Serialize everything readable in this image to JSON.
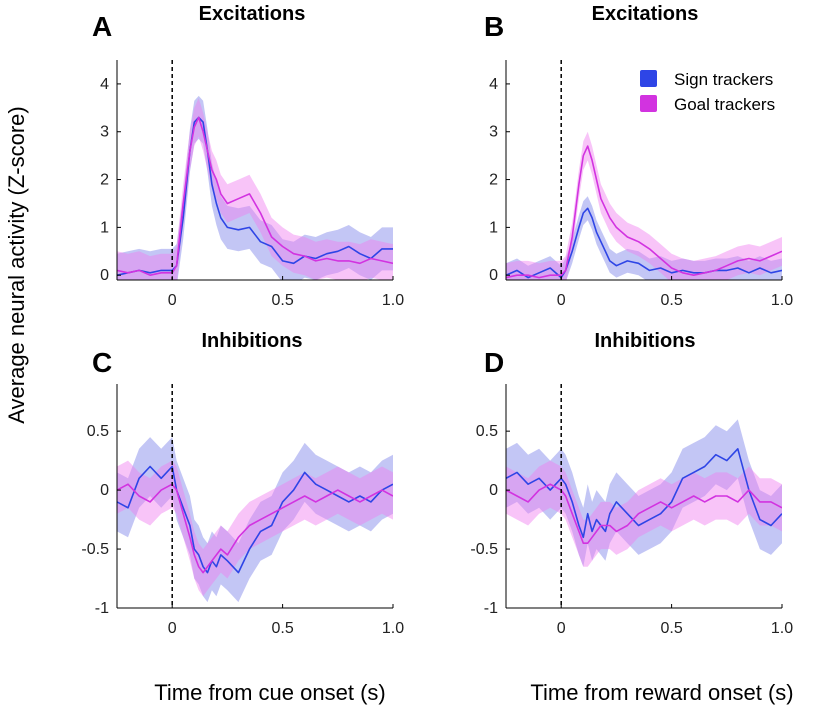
{
  "figure": {
    "ylabel": "Average neural activity (Z-score)",
    "xlabel_left": "Time from cue onset (s)",
    "xlabel_right": "Time from reward onset (s)"
  },
  "legend": {
    "items": [
      {
        "label": "Sign trackers",
        "color": "#2e45e6"
      },
      {
        "label": "Goal trackers",
        "color": "#d233e0"
      }
    ]
  },
  "colors": {
    "sign": "#2e45e6",
    "goal": "#d233e0",
    "sign_band": "#7a80e8",
    "goal_band": "#f07cf0"
  },
  "chart_data": [
    {
      "id": "A",
      "type": "line",
      "title": "Excitations",
      "xlim": [
        -0.25,
        1.0
      ],
      "ylim": [
        -0.1,
        4.5
      ],
      "xticks": [
        0,
        0.5,
        1.0
      ],
      "xtick_labels": [
        "0",
        "0.5",
        "1.0"
      ],
      "yticks": [
        0,
        1,
        2,
        3,
        4
      ],
      "ytick_labels": [
        "0",
        "1",
        "2",
        "3",
        "4"
      ],
      "series": [
        {
          "name": "Sign trackers",
          "band": 0.45,
          "x": [
            -0.25,
            -0.2,
            -0.15,
            -0.1,
            -0.05,
            0,
            0.02,
            0.05,
            0.08,
            0.1,
            0.12,
            0.14,
            0.16,
            0.18,
            0.2,
            0.22,
            0.25,
            0.3,
            0.35,
            0.4,
            0.45,
            0.5,
            0.55,
            0.6,
            0.65,
            0.7,
            0.75,
            0.8,
            0.85,
            0.9,
            0.95,
            1.0
          ],
          "y": [
            0.0,
            0.05,
            0.1,
            0.05,
            0.1,
            0.1,
            0.2,
            1.2,
            2.6,
            3.2,
            3.3,
            3.2,
            2.6,
            1.9,
            1.5,
            1.2,
            1.0,
            0.95,
            1.0,
            0.7,
            0.6,
            0.3,
            0.25,
            0.4,
            0.35,
            0.45,
            0.5,
            0.6,
            0.45,
            0.35,
            0.55,
            0.55
          ]
        },
        {
          "name": "Goal trackers",
          "band": 0.4,
          "x": [
            -0.25,
            -0.2,
            -0.15,
            -0.1,
            -0.05,
            0,
            0.02,
            0.05,
            0.08,
            0.1,
            0.12,
            0.14,
            0.16,
            0.18,
            0.2,
            0.22,
            0.25,
            0.3,
            0.35,
            0.4,
            0.45,
            0.5,
            0.55,
            0.6,
            0.65,
            0.7,
            0.75,
            0.8,
            0.85,
            0.9,
            0.95,
            1.0
          ],
          "y": [
            0.1,
            0.05,
            0.1,
            0.0,
            0.05,
            0.05,
            0.2,
            1.5,
            2.6,
            3.1,
            3.3,
            3.0,
            2.6,
            2.2,
            2.0,
            1.7,
            1.5,
            1.6,
            1.7,
            1.3,
            0.8,
            0.6,
            0.45,
            0.4,
            0.3,
            0.35,
            0.3,
            0.3,
            0.25,
            0.35,
            0.3,
            0.25
          ]
        }
      ]
    },
    {
      "id": "B",
      "type": "line",
      "title": "Excitations",
      "xlim": [
        -0.25,
        1.0
      ],
      "ylim": [
        -0.1,
        4.5
      ],
      "xticks": [
        0,
        0.5,
        1.0
      ],
      "xtick_labels": [
        "0",
        "0.5",
        "1.0"
      ],
      "yticks": [
        0,
        1,
        2,
        3,
        4
      ],
      "ytick_labels": [
        "0",
        "1",
        "2",
        "3",
        "4"
      ],
      "series": [
        {
          "name": "Sign trackers",
          "band": 0.25,
          "x": [
            -0.25,
            -0.2,
            -0.15,
            -0.1,
            -0.05,
            0,
            0.02,
            0.05,
            0.08,
            0.1,
            0.12,
            0.14,
            0.16,
            0.18,
            0.2,
            0.22,
            0.25,
            0.3,
            0.35,
            0.4,
            0.45,
            0.5,
            0.55,
            0.6,
            0.65,
            0.7,
            0.75,
            0.8,
            0.85,
            0.9,
            0.95,
            1.0
          ],
          "y": [
            0.0,
            0.1,
            -0.05,
            0.05,
            0.15,
            -0.05,
            0.1,
            0.5,
            1.0,
            1.3,
            1.4,
            1.2,
            0.9,
            0.7,
            0.5,
            0.3,
            0.2,
            0.3,
            0.25,
            0.1,
            0.15,
            0.05,
            0.1,
            0.05,
            0.05,
            0.1,
            0.1,
            0.15,
            0.05,
            0.15,
            0.05,
            0.1
          ]
        },
        {
          "name": "Goal trackers",
          "band": 0.3,
          "x": [
            -0.25,
            -0.2,
            -0.15,
            -0.1,
            -0.05,
            0,
            0.02,
            0.05,
            0.08,
            0.1,
            0.12,
            0.14,
            0.16,
            0.18,
            0.2,
            0.22,
            0.25,
            0.3,
            0.35,
            0.4,
            0.45,
            0.5,
            0.55,
            0.6,
            0.65,
            0.7,
            0.75,
            0.8,
            0.85,
            0.9,
            0.95,
            1.0
          ],
          "y": [
            -0.05,
            0.0,
            0.0,
            -0.05,
            0.0,
            0.0,
            0.1,
            0.8,
            1.9,
            2.5,
            2.7,
            2.4,
            2.0,
            1.6,
            1.4,
            1.2,
            1.0,
            0.8,
            0.7,
            0.55,
            0.35,
            0.15,
            0.05,
            0.0,
            0.05,
            0.1,
            0.2,
            0.3,
            0.35,
            0.3,
            0.4,
            0.5
          ]
        }
      ]
    },
    {
      "id": "C",
      "type": "line",
      "title": "Inhibitions",
      "xlim": [
        -0.25,
        1.0
      ],
      "ylim": [
        -1.0,
        0.9
      ],
      "xticks": [
        0,
        0.5,
        1.0
      ],
      "xtick_labels": [
        "0",
        "0.5",
        "1.0"
      ],
      "yticks": [
        -1,
        -0.5,
        0,
        0.5
      ],
      "ytick_labels": [
        "-1",
        "-0.5",
        "0",
        "0.5"
      ],
      "series": [
        {
          "name": "Sign trackers",
          "band": 0.25,
          "x": [
            -0.25,
            -0.2,
            -0.15,
            -0.1,
            -0.05,
            0,
            0.02,
            0.05,
            0.08,
            0.1,
            0.12,
            0.14,
            0.16,
            0.18,
            0.2,
            0.22,
            0.25,
            0.3,
            0.35,
            0.4,
            0.45,
            0.5,
            0.55,
            0.6,
            0.65,
            0.7,
            0.75,
            0.8,
            0.85,
            0.9,
            0.95,
            1.0
          ],
          "y": [
            -0.1,
            -0.15,
            0.1,
            0.2,
            0.1,
            0.2,
            0.0,
            -0.15,
            -0.3,
            -0.5,
            -0.55,
            -0.65,
            -0.7,
            -0.6,
            -0.65,
            -0.55,
            -0.6,
            -0.7,
            -0.5,
            -0.35,
            -0.3,
            -0.1,
            0.0,
            0.15,
            0.05,
            0.0,
            -0.05,
            -0.1,
            -0.05,
            -0.1,
            0.0,
            0.05
          ]
        },
        {
          "name": "Goal trackers",
          "band": 0.2,
          "x": [
            -0.25,
            -0.2,
            -0.15,
            -0.1,
            -0.05,
            0,
            0.02,
            0.05,
            0.08,
            0.1,
            0.12,
            0.14,
            0.16,
            0.18,
            0.2,
            0.22,
            0.25,
            0.3,
            0.35,
            0.4,
            0.45,
            0.5,
            0.55,
            0.6,
            0.65,
            0.7,
            0.75,
            0.8,
            0.85,
            0.9,
            0.95,
            1.0
          ],
          "y": [
            0.0,
            0.05,
            -0.05,
            -0.1,
            0.0,
            0.05,
            0.0,
            -0.2,
            -0.4,
            -0.55,
            -0.65,
            -0.7,
            -0.65,
            -0.6,
            -0.55,
            -0.5,
            -0.55,
            -0.4,
            -0.3,
            -0.25,
            -0.2,
            -0.15,
            -0.1,
            -0.05,
            -0.1,
            -0.05,
            0.0,
            -0.05,
            -0.1,
            -0.05,
            0.0,
            -0.05
          ]
        }
      ]
    },
    {
      "id": "D",
      "type": "line",
      "title": "Inhibitions",
      "xlim": [
        -0.25,
        1.0
      ],
      "ylim": [
        -1.0,
        0.9
      ],
      "xticks": [
        0,
        0.5,
        1.0
      ],
      "xtick_labels": [
        "0",
        "0.5",
        "1.0"
      ],
      "yticks": [
        -1,
        -0.5,
        0,
        0.5
      ],
      "ytick_labels": [
        "-1",
        "-0.5",
        "0",
        "0.5"
      ],
      "series": [
        {
          "name": "Sign trackers",
          "band": 0.25,
          "x": [
            -0.25,
            -0.2,
            -0.15,
            -0.1,
            -0.05,
            0,
            0.02,
            0.05,
            0.08,
            0.1,
            0.12,
            0.14,
            0.16,
            0.18,
            0.2,
            0.22,
            0.25,
            0.3,
            0.35,
            0.4,
            0.45,
            0.5,
            0.55,
            0.6,
            0.65,
            0.7,
            0.75,
            0.8,
            0.85,
            0.9,
            0.95,
            1.0
          ],
          "y": [
            0.1,
            0.15,
            0.05,
            0.1,
            0.0,
            0.1,
            0.05,
            -0.1,
            -0.3,
            -0.4,
            -0.2,
            -0.35,
            -0.25,
            -0.3,
            -0.35,
            -0.2,
            -0.1,
            -0.2,
            -0.3,
            -0.25,
            -0.2,
            -0.1,
            0.1,
            0.15,
            0.2,
            0.3,
            0.25,
            0.35,
            0.0,
            -0.25,
            -0.3,
            -0.2
          ]
        },
        {
          "name": "Goal trackers",
          "band": 0.2,
          "x": [
            -0.25,
            -0.2,
            -0.15,
            -0.1,
            -0.05,
            0,
            0.02,
            0.05,
            0.08,
            0.1,
            0.12,
            0.14,
            0.16,
            0.18,
            0.2,
            0.22,
            0.25,
            0.3,
            0.35,
            0.4,
            0.45,
            0.5,
            0.55,
            0.6,
            0.65,
            0.7,
            0.75,
            0.8,
            0.85,
            0.9,
            0.95,
            1.0
          ],
          "y": [
            0.0,
            -0.05,
            -0.1,
            0.0,
            0.05,
            0.0,
            -0.05,
            -0.2,
            -0.35,
            -0.45,
            -0.45,
            -0.4,
            -0.35,
            -0.3,
            -0.3,
            -0.3,
            -0.35,
            -0.3,
            -0.2,
            -0.15,
            -0.1,
            -0.15,
            -0.1,
            -0.05,
            -0.1,
            -0.05,
            -0.05,
            -0.1,
            0.0,
            -0.1,
            -0.1,
            -0.15
          ]
        }
      ]
    }
  ]
}
